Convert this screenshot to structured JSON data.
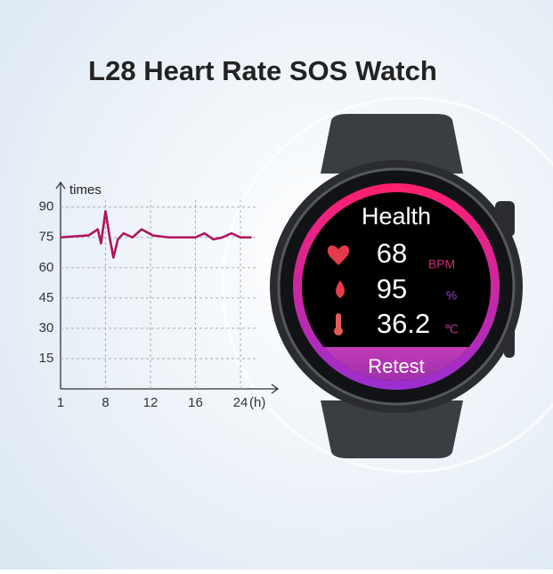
{
  "title": "L28 Heart Rate SOS Watch",
  "chart_data": {
    "type": "line",
    "y_label": "times",
    "x_label": "(h)",
    "x": [
      1,
      5.4,
      6.8,
      7.3,
      8,
      8.4,
      8.7,
      9.1,
      9.6,
      10.4,
      11.2,
      12.2,
      13.6,
      16,
      17.6,
      19.2,
      20.8,
      22.4,
      24,
      26
    ],
    "series": [
      {
        "color": "#b0145f",
        "values": [
          75,
          76,
          79,
          72,
          88,
          74,
          65,
          74,
          77,
          75,
          79,
          76,
          75,
          75,
          77,
          74,
          75,
          77,
          75,
          75
        ]
      }
    ],
    "xticks": [
      1,
      8,
      12,
      16,
      24
    ],
    "ylim": [
      0,
      100
    ],
    "yticks": [
      15,
      30,
      45,
      60,
      75,
      90
    ],
    "grid": true
  },
  "watch": {
    "heading": "Health",
    "rows": [
      {
        "value": "68",
        "unit": "BPM"
      },
      {
        "value": "95",
        "unit": "%"
      },
      {
        "value": "36.2",
        "unit": "℃"
      }
    ],
    "button": "Retest"
  }
}
